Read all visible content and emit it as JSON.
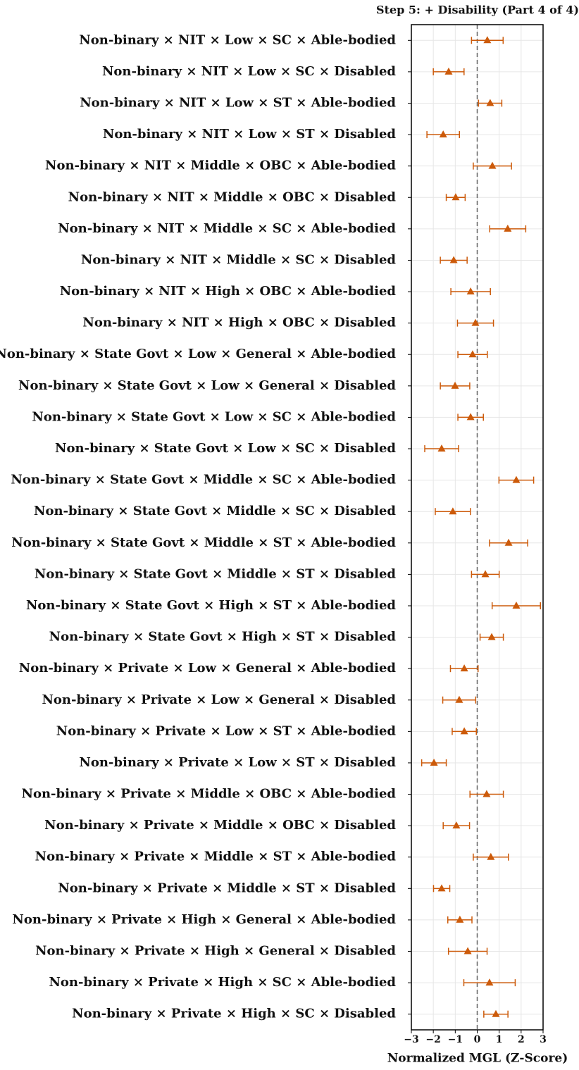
{
  "chart_data": {
    "type": "errorbar",
    "title": "Step 5: + Disability  (Part 4 of 4)",
    "xlabel": "Normalized MGL (Z-Score)",
    "categories": [
      "Non-binary × NIT × Low × SC × Able-bodied",
      "Non-binary × NIT × Low × SC × Disabled",
      "Non-binary × NIT × Low × ST × Able-bodied",
      "Non-binary × NIT × Low × ST × Disabled",
      "Non-binary × NIT × Middle × OBC × Able-bodied",
      "Non-binary × NIT × Middle × OBC × Disabled",
      "Non-binary × NIT × Middle × SC × Able-bodied",
      "Non-binary × NIT × Middle × SC × Disabled",
      "Non-binary × NIT × High × OBC × Able-bodied",
      "Non-binary × NIT × High × OBC × Disabled",
      "Non-binary × State Govt × Low × General × Able-bodied",
      "Non-binary × State Govt × Low × General × Disabled",
      "Non-binary × State Govt × Low × SC × Able-bodied",
      "Non-binary × State Govt × Low × SC × Disabled",
      "Non-binary × State Govt × Middle × SC × Able-bodied",
      "Non-binary × State Govt × Middle × SC × Disabled",
      "Non-binary × State Govt × Middle × ST × Able-bodied",
      "Non-binary × State Govt × Middle × ST × Disabled",
      "Non-binary × State Govt × High × ST × Able-bodied",
      "Non-binary × State Govt × High × ST × Disabled",
      "Non-binary × Private × Low × General × Able-bodied",
      "Non-binary × Private × Low × General × Disabled",
      "Non-binary × Private × Low × ST × Able-bodied",
      "Non-binary × Private × Low × ST × Disabled",
      "Non-binary × Private × Middle × OBC × Able-bodied",
      "Non-binary × Private × Middle × OBC × Disabled",
      "Non-binary × Private × Middle × ST × Able-bodied",
      "Non-binary × Private × Middle × ST × Disabled",
      "Non-binary × Private × High × General × Able-bodied",
      "Non-binary × Private × High × General × Disabled",
      "Non-binary × Private × High × SC × Able-bodied",
      "Non-binary × Private × High × SC × Disabled"
    ],
    "values": [
      0.46,
      -1.3,
      0.59,
      -1.55,
      0.69,
      -0.98,
      1.39,
      -1.07,
      -0.3,
      -0.08,
      -0.21,
      -1.01,
      -0.3,
      -1.62,
      1.78,
      -1.11,
      1.43,
      0.37,
      1.78,
      0.66,
      -0.59,
      -0.82,
      -0.59,
      -1.97,
      0.43,
      -0.95,
      0.62,
      -1.62,
      -0.79,
      -0.43,
      0.56,
      0.85
    ],
    "errors": [
      0.72,
      0.7,
      0.53,
      0.74,
      0.87,
      0.43,
      0.82,
      0.61,
      0.9,
      0.82,
      0.67,
      0.67,
      0.58,
      0.77,
      0.79,
      0.8,
      0.87,
      0.63,
      1.1,
      0.53,
      0.63,
      0.75,
      0.55,
      0.56,
      0.76,
      0.6,
      0.8,
      0.37,
      0.55,
      0.88,
      1.17,
      0.55
    ],
    "color": "#cc5a0a",
    "xlim": [
      -3,
      3
    ],
    "xticks": [
      {
        "value": -3,
        "label": "−3"
      },
      {
        "value": -2,
        "label": "−2"
      },
      {
        "value": -1,
        "label": "−1"
      },
      0,
      1,
      2,
      3
    ],
    "reference_line": 0,
    "grid": true
  }
}
